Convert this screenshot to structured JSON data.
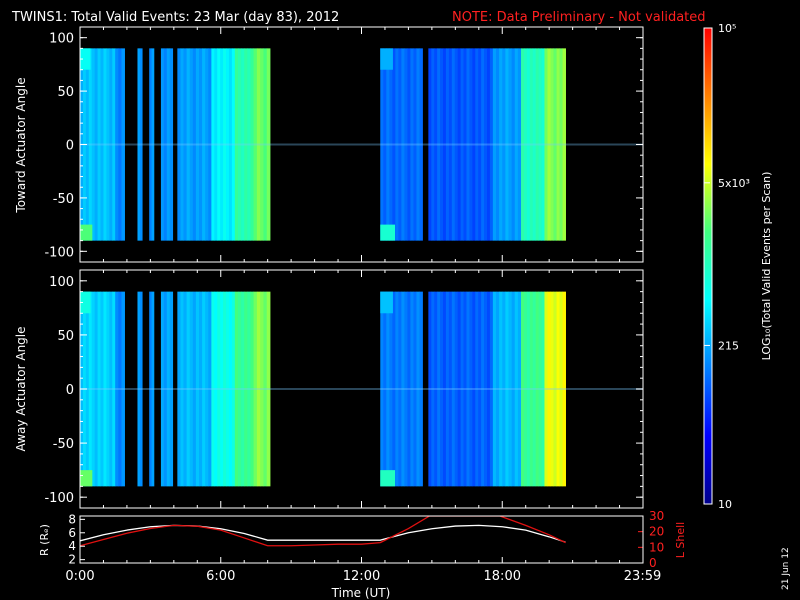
{
  "header": {
    "title": "TWINS1: Total Valid Events: 23 Mar (day  83), 2012",
    "note": "NOTE: Data Preliminary - Not validated",
    "note_color": "#ff2020"
  },
  "footer": {
    "xlabel": "Time (UT)",
    "date_stamp": "21 Jun 12"
  },
  "colorbar": {
    "label": "LOG₁₀(Total Valid Events per Scan)",
    "ticks": [
      {
        "value": 10,
        "label": "10"
      },
      {
        "value": 215,
        "label": "215"
      },
      {
        "value": 5000,
        "label": "5x10³"
      },
      {
        "value": 100000,
        "label": "10⁵"
      }
    ],
    "min": 10,
    "max": 100000,
    "scale": "log",
    "colormap": [
      "#00008c",
      "#0000ff",
      "#0080ff",
      "#00ffff",
      "#40ff80",
      "#ffff00",
      "#ff8000",
      "#ff0000"
    ]
  },
  "chart_data": [
    {
      "type": "heatmap",
      "panel": "toward",
      "ylabel": "Toward Actuator Angle",
      "xlim": [
        "0:00",
        "23:59"
      ],
      "ylim": [
        -110,
        110
      ],
      "yticks": [
        "100",
        "50",
        "0",
        "-50",
        "-100"
      ],
      "grid": false,
      "segments": [
        {
          "start_h": 0.0,
          "end_h": 1.5,
          "level": 0.36
        },
        {
          "start_h": 1.5,
          "end_h": 1.9,
          "level": 0.3
        },
        {
          "start_h": 2.45,
          "end_h": 2.65,
          "level": 0.3
        },
        {
          "start_h": 2.95,
          "end_h": 3.15,
          "level": 0.3
        },
        {
          "start_h": 3.45,
          "end_h": 3.95,
          "level": 0.3
        },
        {
          "start_h": 4.15,
          "end_h": 5.6,
          "level": 0.32
        },
        {
          "start_h": 5.6,
          "end_h": 6.6,
          "level": 0.42
        },
        {
          "start_h": 6.6,
          "end_h": 7.4,
          "level": 0.52
        },
        {
          "start_h": 7.4,
          "end_h": 8.1,
          "level": 0.6
        },
        {
          "start_h": 12.8,
          "end_h": 14.6,
          "level": 0.26
        },
        {
          "start_h": 14.85,
          "end_h": 17.6,
          "level": 0.24
        },
        {
          "start_h": 17.6,
          "end_h": 18.8,
          "level": 0.32
        },
        {
          "start_h": 18.8,
          "end_h": 19.8,
          "level": 0.5
        },
        {
          "start_h": 19.8,
          "end_h": 20.7,
          "level": 0.62
        }
      ]
    },
    {
      "type": "heatmap",
      "panel": "away",
      "ylabel": "Away Actuator Angle",
      "xlim": [
        "0:00",
        "23:59"
      ],
      "ylim": [
        -110,
        110
      ],
      "yticks": [
        "100",
        "50",
        "0",
        "-50",
        "-100"
      ],
      "grid": false,
      "segments": [
        {
          "start_h": 0.0,
          "end_h": 1.5,
          "level": 0.38
        },
        {
          "start_h": 1.5,
          "end_h": 1.9,
          "level": 0.3
        },
        {
          "start_h": 2.45,
          "end_h": 2.65,
          "level": 0.3
        },
        {
          "start_h": 2.95,
          "end_h": 3.15,
          "level": 0.3
        },
        {
          "start_h": 3.45,
          "end_h": 3.95,
          "level": 0.32
        },
        {
          "start_h": 4.15,
          "end_h": 5.6,
          "level": 0.35
        },
        {
          "start_h": 5.6,
          "end_h": 6.6,
          "level": 0.45
        },
        {
          "start_h": 6.6,
          "end_h": 7.4,
          "level": 0.55
        },
        {
          "start_h": 7.4,
          "end_h": 8.1,
          "level": 0.62
        },
        {
          "start_h": 12.8,
          "end_h": 14.6,
          "level": 0.28
        },
        {
          "start_h": 14.85,
          "end_h": 17.6,
          "level": 0.25
        },
        {
          "start_h": 17.6,
          "end_h": 18.8,
          "level": 0.35
        },
        {
          "start_h": 18.8,
          "end_h": 19.8,
          "level": 0.55
        },
        {
          "start_h": 19.8,
          "end_h": 20.7,
          "level": 0.7
        }
      ]
    },
    {
      "type": "line",
      "panel": "orbit",
      "ylabel": "R (Rₑ)",
      "ylabel_right": "L Shell",
      "ylabel_right_color": "#ff2020",
      "xlabel": "Time (UT)",
      "xticks": [
        "0:00",
        "6:00",
        "12:00",
        "18:00",
        "23:59"
      ],
      "xtick_hours": [
        0,
        6,
        12,
        18,
        23.98
      ],
      "xlim_hours": [
        0,
        24
      ],
      "ylim": [
        1.5,
        8.5
      ],
      "yticks": [
        "8",
        "6",
        "4",
        "2"
      ],
      "ylim_right": [
        0,
        30
      ],
      "yticks_right": [
        "30",
        "20",
        "10",
        "0"
      ],
      "series": [
        {
          "color": "#ffffff",
          "x": [
            0,
            1,
            2,
            3,
            4,
            5,
            6,
            7,
            8,
            9,
            10,
            11,
            12,
            12.8,
            14,
            15,
            16,
            17,
            18,
            19,
            20,
            20.7
          ],
          "y": [
            4.8,
            5.7,
            6.4,
            6.9,
            7.1,
            7.0,
            6.6,
            5.9,
            4.9,
            4.9,
            4.9,
            4.9,
            4.9,
            4.9,
            6.0,
            6.6,
            7.0,
            7.1,
            6.9,
            6.4,
            5.4,
            4.6
          ]
        },
        {
          "color": "#e01010",
          "axis": "right",
          "x": [
            0,
            1,
            2,
            3,
            4,
            5,
            6,
            7,
            8,
            9,
            10,
            11,
            12,
            12.8,
            14,
            14.9,
            17.9,
            19,
            20,
            20.7
          ],
          "y": [
            11,
            15,
            19,
            22,
            24,
            23.5,
            21,
            16,
            11,
            11,
            11.5,
            12,
            12,
            13,
            22,
            30,
            30,
            24,
            18,
            13
          ]
        }
      ]
    }
  ]
}
